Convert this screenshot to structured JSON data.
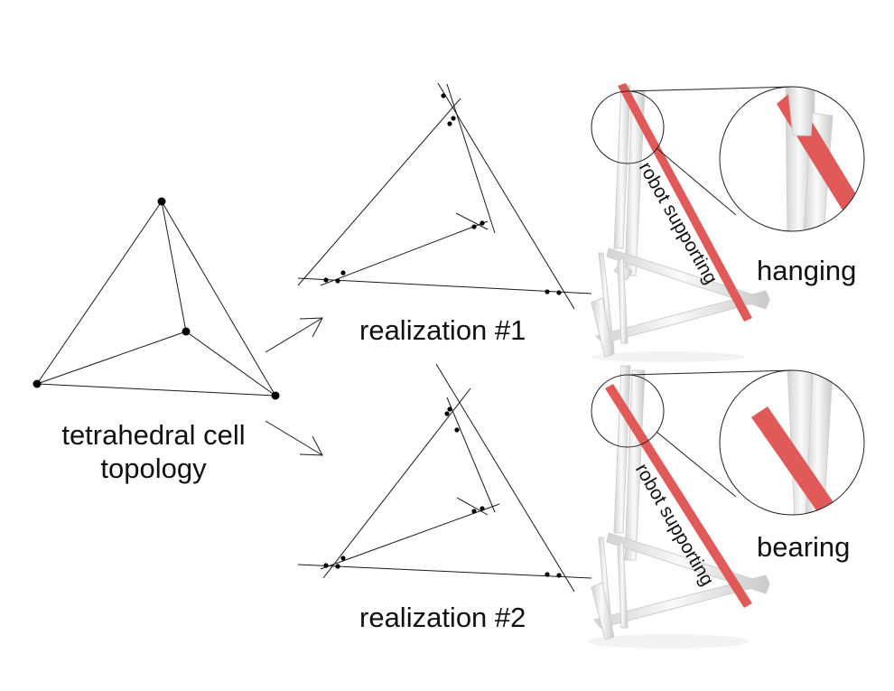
{
  "labels": {
    "topology_line1": "tetrahedral cell",
    "topology_line2": "topology",
    "realization_1": "realization #1",
    "realization_2": "realization #2",
    "hanging": "hanging",
    "bearing": "bearing",
    "robot_supporting_1": "robot supporting",
    "robot_supporting_2": "robot supporting"
  },
  "colors": {
    "line": "#1a1a1a",
    "robot_bar": "#e05a5a",
    "robot_bar_dark": "#c84646",
    "white_bar": "#f2f2f2",
    "white_bar_shade": "#cfcfcf"
  }
}
